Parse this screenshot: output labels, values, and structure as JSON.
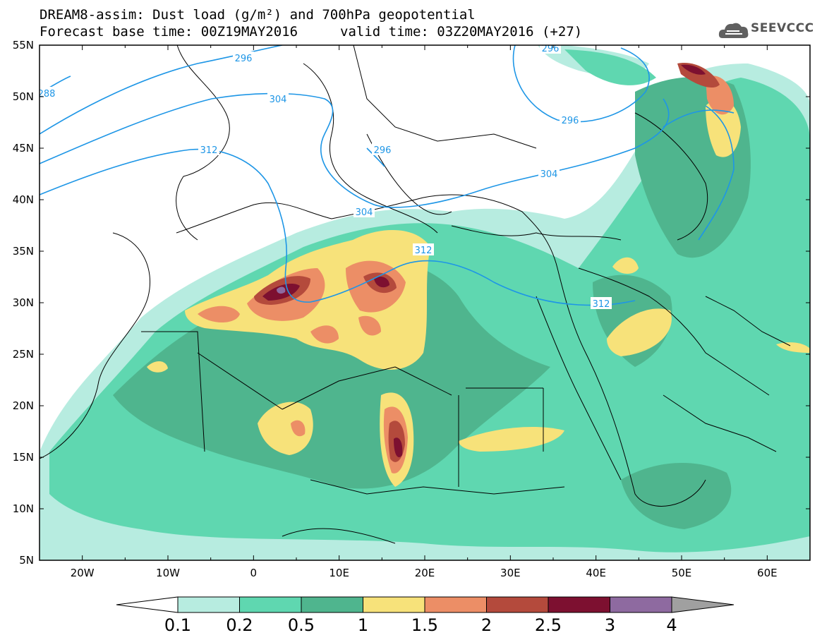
{
  "header": {
    "title_line1": "DREAM8-assim: Dust load (g/m²) and 700hPa geopotential",
    "title_line2": "Forecast base time: 00Z19MAY2016",
    "valid_time": "valid time: 03Z20MAY2016 (+27)",
    "logo_text": "SEEVCCC",
    "logo_icon": "cloud-logo-icon"
  },
  "axes": {
    "lat_labels": [
      "55N",
      "50N",
      "45N",
      "40N",
      "35N",
      "30N",
      "25N",
      "20N",
      "15N",
      "10N",
      "5N"
    ],
    "lon_labels": [
      "20W",
      "10W",
      "0",
      "10E",
      "20E",
      "30E",
      "40E",
      "50E",
      "60E"
    ]
  },
  "contours": {
    "labels": [
      "288",
      "296",
      "296",
      "296",
      "304",
      "304",
      "304",
      "312",
      "312",
      "312",
      "296"
    ]
  },
  "legend": {
    "labels": [
      "0.1",
      "0.2",
      "0.5",
      "1",
      "1.5",
      "2",
      "2.5",
      "3",
      "4"
    ],
    "colors": [
      "#ffffff",
      "#b7ece0",
      "#5fd7b0",
      "#4fb58e",
      "#f7e27a",
      "#ec8e66",
      "#b44a3c",
      "#7d1030",
      "#8e6aa0",
      "#a0a0a0"
    ]
  },
  "colors": {
    "contour_line": "#1e96e6",
    "border_line": "#000000"
  }
}
